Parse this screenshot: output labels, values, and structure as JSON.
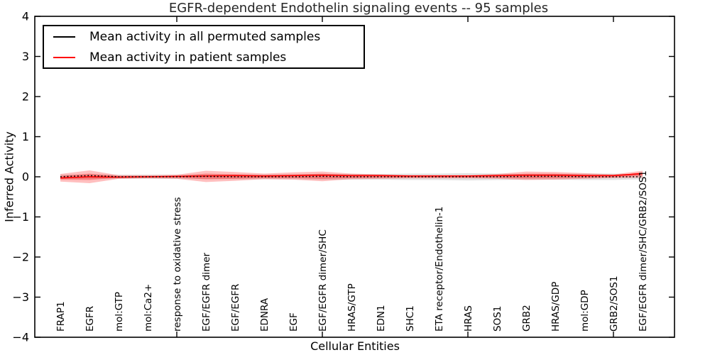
{
  "chart_data": {
    "type": "line",
    "title": "EGFR-dependent Endothelin signaling events -- 95 samples",
    "xlabel": "Cellular Entities",
    "ylabel": "Inferred Activity",
    "ylim": [
      -4,
      4
    ],
    "yticks": [
      -4,
      -3,
      -2,
      -1,
      0,
      1,
      2,
      3,
      4
    ],
    "ytick_labels": [
      "−4",
      "−3",
      "−2",
      "−1",
      "0",
      "1",
      "2",
      "3",
      "4"
    ],
    "grid": false,
    "legend_position": "upper-left",
    "categories": [
      "FRAP1",
      "EGFR",
      "mol:GTP",
      "mol:Ca2+",
      "response to oxidative stress",
      "EGF/EGFR dimer",
      "EGF/EGFR",
      "EDNRA",
      "EGF",
      "EGF/EGFR dimer/SHC",
      "HRAS/GTP",
      "EDN1",
      "SHC1",
      "ETA receptor/Endothelin-1",
      "HRAS",
      "SOS1",
      "GRB2",
      "HRAS/GDP",
      "mol:GDP",
      "GRB2/SOS1",
      "EGF/EGFR dimer/SHC/GRB2/SOS1"
    ],
    "series": [
      {
        "name": "Mean activity in all permuted samples",
        "color": "#000000",
        "style": "dotted",
        "values": [
          0.0,
          0.03,
          0.0,
          0.0,
          0.0,
          0.01,
          0.0,
          0.0,
          0.0,
          0.01,
          0.0,
          0.0,
          0.0,
          0.0,
          0.0,
          0.0,
          0.01,
          0.01,
          0.0,
          0.0,
          0.0
        ]
      },
      {
        "name": "Mean activity in patient samples",
        "color": "#ff0000",
        "style": "solid",
        "values": [
          -0.03,
          0.0,
          -0.01,
          0.0,
          0.01,
          0.02,
          0.03,
          0.02,
          0.03,
          0.04,
          0.03,
          0.03,
          0.02,
          0.02,
          0.02,
          0.03,
          0.04,
          0.04,
          0.03,
          0.03,
          0.08
        ]
      }
    ],
    "bands": [
      {
        "name": "permuted-samples-range",
        "color": "#bdbdbd",
        "opacity": 0.45,
        "hi": [
          0.05,
          0.06,
          0.05,
          0.05,
          0.05,
          0.06,
          0.06,
          0.06,
          0.06,
          0.07,
          0.07,
          0.07,
          0.08,
          0.08,
          0.09,
          0.08,
          0.07,
          0.07,
          0.08,
          0.08,
          0.06
        ],
        "lo": [
          -0.05,
          -0.06,
          -0.05,
          -0.05,
          -0.05,
          -0.06,
          -0.06,
          -0.06,
          -0.06,
          -0.07,
          -0.07,
          -0.07,
          -0.08,
          -0.08,
          -0.09,
          -0.08,
          -0.07,
          -0.07,
          -0.08,
          -0.08,
          -0.06
        ]
      },
      {
        "name": "patient-samples-range-outer",
        "color": "#ff0000",
        "opacity": 0.25,
        "hi": [
          0.07,
          0.16,
          0.04,
          0.04,
          0.05,
          0.15,
          0.12,
          0.08,
          0.11,
          0.13,
          0.08,
          0.06,
          0.04,
          0.04,
          0.04,
          0.07,
          0.13,
          0.12,
          0.09,
          0.06,
          0.15
        ],
        "lo": [
          -0.12,
          -0.16,
          -0.05,
          -0.04,
          -0.05,
          -0.13,
          -0.1,
          -0.06,
          -0.07,
          -0.11,
          -0.06,
          -0.05,
          -0.04,
          -0.04,
          -0.04,
          -0.05,
          -0.08,
          -0.07,
          -0.05,
          -0.03,
          -0.02
        ]
      },
      {
        "name": "patient-samples-range-inner",
        "color": "#ff0000",
        "opacity": 0.28,
        "hi": [
          0.02,
          0.08,
          0.02,
          0.02,
          0.02,
          0.08,
          0.06,
          0.04,
          0.05,
          0.08,
          0.04,
          0.03,
          0.02,
          0.02,
          0.02,
          0.04,
          0.08,
          0.08,
          0.05,
          0.03,
          0.11
        ],
        "lo": [
          -0.07,
          -0.08,
          -0.02,
          -0.02,
          -0.02,
          -0.06,
          -0.05,
          -0.03,
          -0.03,
          -0.05,
          -0.03,
          -0.02,
          -0.02,
          -0.02,
          -0.02,
          -0.02,
          -0.04,
          -0.03,
          -0.02,
          -0.01,
          0.03
        ]
      }
    ]
  }
}
